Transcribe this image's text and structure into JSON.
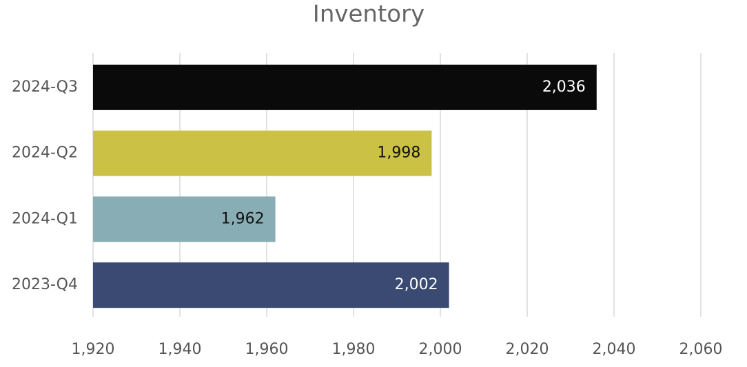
{
  "chart_data": {
    "type": "hbar",
    "title": "Inventory",
    "categories": [
      "2024-Q3",
      "2024-Q2",
      "2024-Q1",
      "2023-Q4"
    ],
    "values": [
      2036,
      1998,
      1962,
      2002
    ],
    "value_labels": [
      "2,036",
      "1,998",
      "1,962",
      "2,002"
    ],
    "colors": [
      "#0a0a0a",
      "#cbc145",
      "#88adb5",
      "#3b4a73"
    ],
    "xlim": [
      1920,
      2070
    ],
    "xticks": [
      {
        "value": 1920,
        "label": "1,920"
      },
      {
        "value": 1940,
        "label": "1,940"
      },
      {
        "value": 1960,
        "label": "1,960"
      },
      {
        "value": 1980,
        "label": "1,980"
      },
      {
        "value": 2000,
        "label": "2,000"
      },
      {
        "value": 2020,
        "label": "2,020"
      },
      {
        "value": 2040,
        "label": "2,040"
      },
      {
        "value": 2060,
        "label": "2,060"
      }
    ],
    "grid": true
  }
}
